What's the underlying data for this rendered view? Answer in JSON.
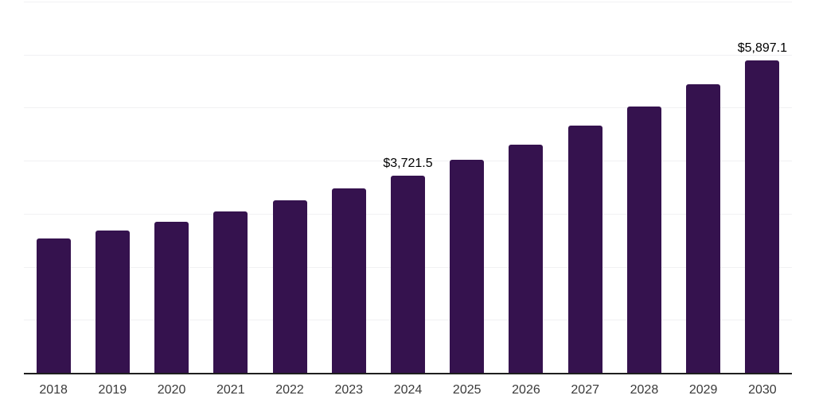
{
  "chart_data": {
    "type": "bar",
    "title": "",
    "xlabel": "",
    "ylabel": "",
    "categories": [
      "2018",
      "2019",
      "2020",
      "2021",
      "2022",
      "2023",
      "2024",
      "2025",
      "2026",
      "2027",
      "2028",
      "2029",
      "2030"
    ],
    "values": [
      2530,
      2680,
      2845,
      3040,
      3250,
      3475,
      3721.5,
      4015,
      4300,
      4660,
      5025,
      5440,
      5897.1
    ],
    "data_labels": [
      {
        "category": "2024",
        "text": "$3,721.5"
      },
      {
        "category": "2030",
        "text": "$5,897.1"
      }
    ],
    "ylim": [
      0,
      7000
    ],
    "grid_step": 1000,
    "grid": "horizontal-only",
    "y_tick_labels_visible": false,
    "legend_position": "none",
    "style": {
      "bar_color": "#35124e",
      "gridline_color": "#f1f1f3",
      "axis_line_color": "#1f1f1f",
      "tick_label_color": "#3a3a3a",
      "data_label_color": "#000000",
      "background_color": "#ffffff"
    }
  }
}
